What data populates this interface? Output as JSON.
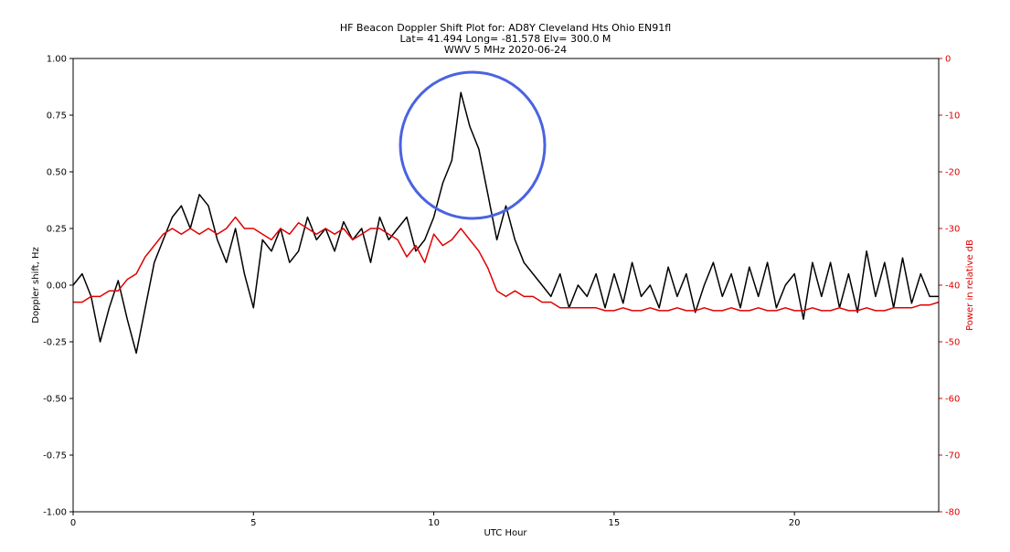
{
  "chart_data": {
    "type": "line",
    "title": "HF Beacon Doppler Shift Plot for:  AD8Y Cleveland Hts Ohio EN91fl",
    "subtitle": "Lat= 41.494    Long=  -81.578    Elv=  300.0  M",
    "subtitle2": "WWV 5 MHz   2020-06-24",
    "xlabel": "UTC Hour",
    "ylabel": "Doppler shift, Hz",
    "y2label": "Power in relative dB",
    "xlim": [
      0,
      24
    ],
    "xticks": [
      0,
      5,
      10,
      15,
      20
    ],
    "ylim": [
      -1,
      1
    ],
    "yticks": [
      {
        "value": -1,
        "label": "-1.00"
      },
      -0.75,
      {
        "value": -0.5,
        "label": "-0.50"
      },
      -0.25,
      {
        "value": 0,
        "label": "0.00"
      },
      0.25,
      {
        "value": 0.5,
        "label": "0.50"
      },
      0.75,
      {
        "value": 1,
        "label": "1.00"
      }
    ],
    "y2lim": [
      -80,
      0
    ],
    "y2ticks": [
      -80,
      -70,
      -60,
      -50,
      -40,
      -30,
      -20,
      -10,
      0
    ],
    "x": [
      0,
      0.25,
      0.5,
      0.75,
      1,
      1.25,
      1.5,
      1.75,
      2,
      2.25,
      2.5,
      2.75,
      3,
      3.25,
      3.5,
      3.75,
      4,
      4.25,
      4.5,
      4.75,
      5,
      5.25,
      5.5,
      5.75,
      6,
      6.25,
      6.5,
      6.75,
      7,
      7.25,
      7.5,
      7.75,
      8,
      8.25,
      8.5,
      8.75,
      9,
      9.25,
      9.5,
      9.75,
      10,
      10.25,
      10.5,
      10.75,
      11,
      11.25,
      11.5,
      11.75,
      12,
      12.25,
      12.5,
      12.75,
      13,
      13.25,
      13.5,
      13.75,
      14,
      14.25,
      14.5,
      14.75,
      15,
      15.25,
      15.5,
      15.75,
      16,
      16.25,
      16.5,
      16.75,
      17,
      17.25,
      17.5,
      17.75,
      18,
      18.25,
      18.5,
      18.75,
      19,
      19.25,
      19.5,
      19.75,
      20,
      20.25,
      20.5,
      20.75,
      21,
      21.25,
      21.5,
      21.75,
      22,
      22.25,
      22.5,
      22.75,
      23,
      23.25,
      23.5,
      23.75,
      24
    ],
    "series": [
      {
        "color": "#000000",
        "values": [
          0,
          0.05,
          -0.05,
          -0.25,
          -0.1,
          0.02,
          -0.15,
          -0.3,
          -0.1,
          0.1,
          0.2,
          0.3,
          0.35,
          0.25,
          0.4,
          0.35,
          0.2,
          0.1,
          0.25,
          0.05,
          -0.1,
          0.2,
          0.15,
          0.25,
          0.1,
          0.15,
          0.3,
          0.2,
          0.25,
          0.15,
          0.28,
          0.2,
          0.25,
          0.1,
          0.3,
          0.2,
          0.25,
          0.3,
          0.15,
          0.2,
          0.3,
          0.45,
          0.55,
          0.85,
          0.7,
          0.6,
          0.4,
          0.2,
          0.35,
          0.2,
          0.1,
          0.05,
          0,
          -0.05,
          0.05,
          -0.1,
          0,
          -0.05,
          0.05,
          -0.1,
          0.05,
          -0.08,
          0.1,
          -0.05,
          0,
          -0.1,
          0.08,
          -0.05,
          0.05,
          -0.12,
          0,
          0.1,
          -0.05,
          0.05,
          -0.1,
          0.08,
          -0.05,
          0.1,
          -0.1,
          0,
          0.05,
          -0.15,
          0.1,
          -0.05,
          0.1,
          -0.1,
          0.05,
          -0.12,
          0.15,
          -0.05,
          0.1,
          -0.1,
          0.12,
          -0.08,
          0.05,
          -0.05,
          -0.05
        ]
      },
      {
        "color": "#e00000",
        "axis": "y2",
        "values": [
          -43,
          -43,
          -42,
          -42,
          -41,
          -41,
          -39,
          -38,
          -35,
          -33,
          -31,
          -30,
          -31,
          -30,
          -31,
          -30,
          -31,
          -30,
          -28,
          -30,
          -30,
          -31,
          -32,
          -30,
          -31,
          -29,
          -30,
          -31,
          -30,
          -31,
          -30,
          -32,
          -31,
          -30,
          -30,
          -31,
          -32,
          -35,
          -33,
          -36,
          -31,
          -33,
          -32,
          -30,
          -32,
          -34,
          -37,
          -41,
          -42,
          -41,
          -42,
          -42,
          -43,
          -43,
          -44,
          -44,
          -44,
          -44,
          -44,
          -44.5,
          -44.5,
          -44,
          -44.5,
          -44.5,
          -44,
          -44.5,
          -44.5,
          -44,
          -44.5,
          -44.5,
          -44,
          -44.5,
          -44.5,
          -44,
          -44.5,
          -44.5,
          -44,
          -44.5,
          -44.5,
          -44,
          -44.5,
          -44.5,
          -44,
          -44.5,
          -44.5,
          -44,
          -44.5,
          -44.5,
          -44,
          -44.5,
          -44.5,
          -44,
          -44,
          -44,
          -43.5,
          -43.5,
          -43
        ]
      }
    ]
  }
}
